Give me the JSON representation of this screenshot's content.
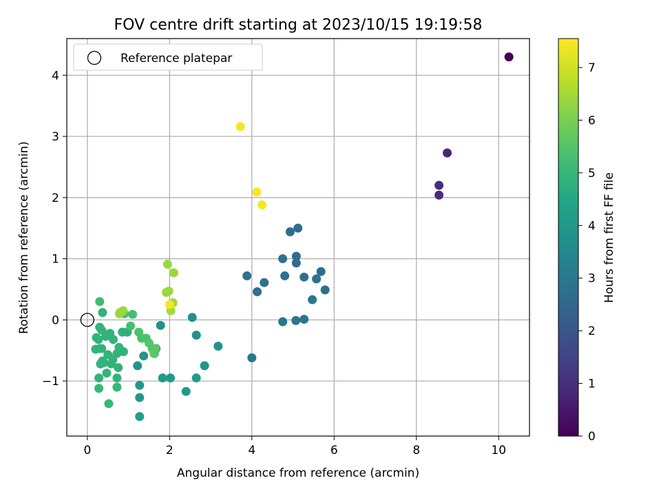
{
  "chart_data": {
    "type": "scatter",
    "title": "FOV centre drift starting at 2023/10/15 19:19:58",
    "xlabel": "Angular distance from reference (arcmin)",
    "ylabel": "Rotation from reference (arcmin)",
    "xlim": [
      -0.5,
      10.75
    ],
    "ylim": [
      -1.9,
      4.6
    ],
    "xticks": [
      0,
      2,
      4,
      6,
      8,
      10
    ],
    "yticks": [
      -1,
      0,
      1,
      2,
      3,
      4
    ],
    "xtick_labels": [
      "0",
      "2",
      "4",
      "6",
      "8",
      "10"
    ],
    "ytick_labels": [
      "−1",
      "0",
      "1",
      "2",
      "3",
      "4"
    ],
    "grid": true,
    "legend": {
      "position": "top-left",
      "entries": [
        "Reference platepar"
      ]
    },
    "reference_point": {
      "x": 0,
      "y": 0,
      "label": "Reference platepar"
    },
    "colormap": "viridis",
    "colorbar": {
      "label": "Hours from first FF file",
      "range": [
        0,
        7.55
      ],
      "ticks": [
        0,
        1,
        2,
        3,
        4,
        5,
        6,
        7
      ],
      "tick_labels": [
        "0",
        "1",
        "2",
        "3",
        "4",
        "5",
        "6",
        "7"
      ]
    },
    "series": [
      {
        "x": [
          10.25,
          8.75,
          8.55,
          8.55,
          5.12,
          4.93,
          5.08,
          4.75,
          5.08,
          5.68,
          3.88,
          4.8,
          5.27,
          5.57,
          4.3,
          5.78,
          4.13,
          5.47,
          4.75,
          5.07,
          5.27,
          4.0,
          2.55,
          1.78,
          2.65,
          3.18,
          1.67,
          1.63,
          1.37,
          1.22,
          2.85,
          1.83,
          2.02,
          2.65,
          1.27,
          1.27,
          2.4,
          1.27,
          0.97,
          0.85,
          0.37,
          0.3,
          0.35,
          0.55,
          0.45,
          0.63,
          0.27,
          0.22,
          0.35,
          0.77,
          0.2,
          0.3,
          0.88,
          0.5,
          0.72,
          0.37,
          0.62,
          0.4,
          0.32,
          0.58,
          0.75,
          0.47,
          0.28,
          0.72,
          0.28,
          0.72,
          0.52,
          0.3,
          0.8,
          0.9,
          1.1,
          1.05,
          1.25,
          1.32,
          1.43,
          1.5,
          1.58,
          1.62,
          1.65,
          1.95,
          2.1,
          1.92,
          1.98,
          2.08,
          2.03,
          0.83,
          0.87,
          0.78,
          3.72,
          4.12,
          4.25,
          2.0
        ],
        "y": [
          4.3,
          2.73,
          2.2,
          2.04,
          1.5,
          1.44,
          1.04,
          1.0,
          0.93,
          0.79,
          0.72,
          0.72,
          0.7,
          0.67,
          0.61,
          0.49,
          0.46,
          0.33,
          -0.03,
          -0.01,
          0.01,
          -0.62,
          0.04,
          -0.09,
          -0.25,
          -0.43,
          -0.47,
          -0.55,
          -0.59,
          -0.75,
          -0.75,
          -0.95,
          -0.95,
          -0.95,
          -1.07,
          -1.27,
          -1.17,
          -1.58,
          -0.2,
          -0.2,
          0.12,
          -0.12,
          -0.17,
          -0.22,
          -0.27,
          -0.32,
          -0.32,
          -0.29,
          -0.47,
          -0.45,
          -0.48,
          -0.47,
          -0.52,
          -0.57,
          -0.55,
          -0.67,
          -0.65,
          -0.7,
          -0.72,
          -0.72,
          -0.78,
          -0.87,
          -0.95,
          -0.95,
          -1.12,
          -1.1,
          -1.37,
          0.3,
          0.12,
          0.1,
          0.09,
          -0.1,
          -0.2,
          -0.3,
          -0.3,
          -0.38,
          -0.47,
          -0.55,
          -0.47,
          0.91,
          0.77,
          0.45,
          0.47,
          0.28,
          0.15,
          0.13,
          0.15,
          0.1,
          3.16,
          2.09,
          1.88,
          0.25
        ],
        "hours": [
          0.0,
          0.8,
          1.0,
          1.0,
          2.7,
          2.7,
          2.7,
          2.8,
          2.7,
          2.7,
          2.8,
          2.8,
          2.8,
          2.8,
          2.8,
          2.8,
          2.8,
          3.0,
          3.0,
          3.0,
          2.9,
          3.0,
          3.8,
          3.8,
          3.8,
          3.8,
          3.8,
          3.9,
          3.9,
          3.9,
          3.9,
          4.1,
          4.1,
          4.1,
          4.0,
          4.0,
          4.0,
          4.2,
          4.8,
          4.8,
          4.9,
          4.9,
          4.9,
          4.9,
          4.9,
          4.9,
          4.9,
          4.9,
          4.9,
          4.9,
          4.9,
          4.9,
          4.9,
          4.9,
          4.9,
          4.9,
          4.9,
          4.9,
          4.9,
          4.9,
          4.9,
          4.9,
          4.9,
          4.9,
          5.0,
          5.0,
          5.0,
          5.2,
          5.2,
          5.3,
          5.3,
          5.3,
          5.4,
          5.4,
          5.4,
          5.5,
          5.5,
          5.6,
          5.6,
          6.4,
          6.4,
          6.4,
          6.4,
          6.4,
          6.5,
          6.4,
          6.4,
          6.4,
          7.45,
          7.45,
          7.45,
          7.45
        ]
      }
    ]
  }
}
